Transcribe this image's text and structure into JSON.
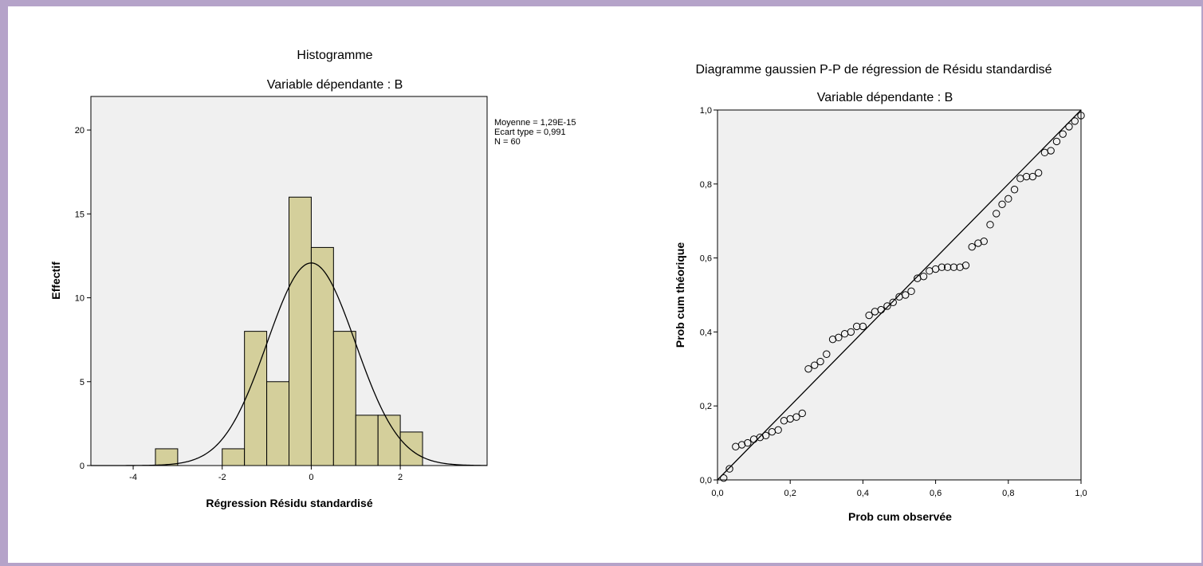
{
  "colors": {
    "frame": "#b5a3c9",
    "plot_bg": "#f0f0f0",
    "bar_fill": "#d4cf9b",
    "stroke": "#000000"
  },
  "chart_data": [
    {
      "type": "bar",
      "title": "Histogramme",
      "subtitle": "Variable dépendante : B",
      "xlabel": "Régression Résidu standardisé",
      "ylabel": "Effectif",
      "bin_width": 0.5,
      "bin_starts": [
        -3.5,
        -2.0,
        -1.5,
        -1.0,
        -0.5,
        0.0,
        0.5,
        1.0,
        1.5,
        2.0
      ],
      "values": [
        1,
        1,
        8,
        5,
        16,
        13,
        8,
        3,
        3,
        2
      ],
      "xlim": [
        -4.95,
        3.95
      ],
      "ylim": [
        0,
        22
      ],
      "xticks": [
        -4,
        -2,
        0,
        2
      ],
      "xtick_labels": [
        "-4",
        "-2",
        "0",
        "2"
      ],
      "yticks": [
        0,
        5,
        10,
        15,
        20
      ],
      "ytick_labels": [
        "0",
        "5",
        "10",
        "15",
        "20"
      ],
      "normal_curve": {
        "mean": 0,
        "sd": 0.991,
        "n": 60
      },
      "stats": [
        "Moyenne = 1,29E-15",
        "Ecart type = 0,991",
        "N = 60"
      ],
      "grid": false
    },
    {
      "type": "scatter",
      "title": "Diagramme gaussien P-P de régression de Résidu standardisé",
      "subtitle": "Variable dépendante : B",
      "xlabel": "Prob cum observée",
      "ylabel": "Prob cum théorique",
      "xlim": [
        0,
        1
      ],
      "ylim": [
        0,
        1
      ],
      "xticks": [
        0,
        0.2,
        0.4,
        0.6,
        0.8,
        1.0
      ],
      "xtick_labels": [
        "0,0",
        "0,2",
        "0,4",
        "0,6",
        "0,8",
        "1,0"
      ],
      "yticks": [
        0,
        0.2,
        0.4,
        0.6,
        0.8,
        1.0
      ],
      "ytick_labels": [
        "0,0",
        "0,2",
        "0,4",
        "0,6",
        "0,8",
        "1,0"
      ],
      "reference_line": [
        [
          0,
          0
        ],
        [
          1,
          1
        ]
      ],
      "points": [
        [
          0.017,
          0.005
        ],
        [
          0.033,
          0.03
        ],
        [
          0.05,
          0.09
        ],
        [
          0.067,
          0.095
        ],
        [
          0.083,
          0.1
        ],
        [
          0.1,
          0.11
        ],
        [
          0.117,
          0.115
        ],
        [
          0.133,
          0.12
        ],
        [
          0.15,
          0.13
        ],
        [
          0.167,
          0.135
        ],
        [
          0.183,
          0.16
        ],
        [
          0.2,
          0.165
        ],
        [
          0.217,
          0.17
        ],
        [
          0.233,
          0.18
        ],
        [
          0.25,
          0.3
        ],
        [
          0.267,
          0.31
        ],
        [
          0.283,
          0.32
        ],
        [
          0.3,
          0.34
        ],
        [
          0.317,
          0.38
        ],
        [
          0.333,
          0.385
        ],
        [
          0.35,
          0.395
        ],
        [
          0.367,
          0.4
        ],
        [
          0.383,
          0.415
        ],
        [
          0.4,
          0.415
        ],
        [
          0.417,
          0.445
        ],
        [
          0.433,
          0.455
        ],
        [
          0.45,
          0.46
        ],
        [
          0.467,
          0.47
        ],
        [
          0.483,
          0.48
        ],
        [
          0.5,
          0.495
        ],
        [
          0.517,
          0.5
        ],
        [
          0.533,
          0.51
        ],
        [
          0.55,
          0.545
        ],
        [
          0.567,
          0.55
        ],
        [
          0.583,
          0.565
        ],
        [
          0.6,
          0.57
        ],
        [
          0.617,
          0.575
        ],
        [
          0.633,
          0.575
        ],
        [
          0.65,
          0.575
        ],
        [
          0.667,
          0.575
        ],
        [
          0.683,
          0.58
        ],
        [
          0.7,
          0.63
        ],
        [
          0.717,
          0.64
        ],
        [
          0.733,
          0.645
        ],
        [
          0.75,
          0.69
        ],
        [
          0.767,
          0.72
        ],
        [
          0.783,
          0.745
        ],
        [
          0.8,
          0.76
        ],
        [
          0.817,
          0.785
        ],
        [
          0.833,
          0.815
        ],
        [
          0.85,
          0.82
        ],
        [
          0.867,
          0.82
        ],
        [
          0.883,
          0.83
        ],
        [
          0.9,
          0.885
        ],
        [
          0.917,
          0.89
        ],
        [
          0.933,
          0.915
        ],
        [
          0.95,
          0.935
        ],
        [
          0.967,
          0.955
        ],
        [
          0.983,
          0.97
        ],
        [
          1.0,
          0.985
        ]
      ],
      "grid": false
    }
  ]
}
